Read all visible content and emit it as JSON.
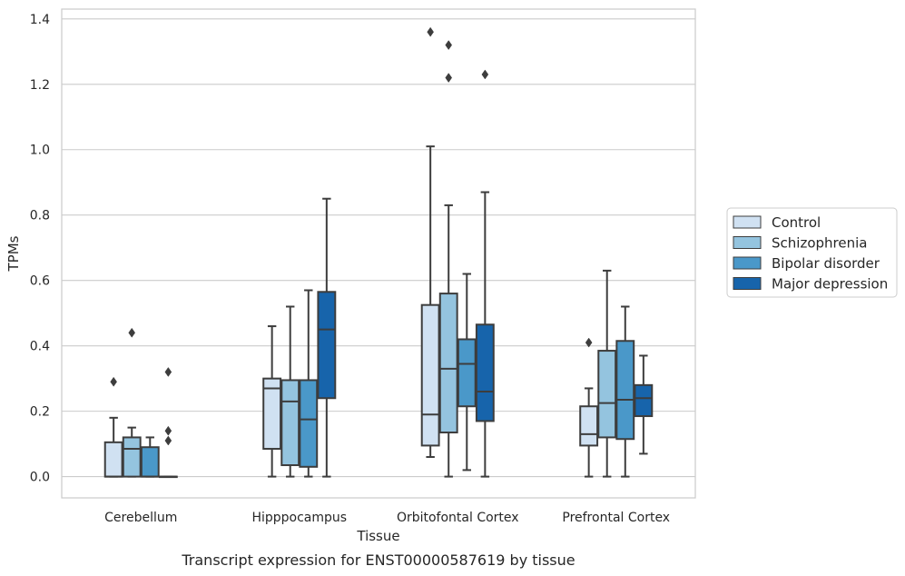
{
  "caption": "Transcript expression for ENST00000587619 by tissue",
  "chart_data": {
    "type": "box",
    "xlabel": "Tissue",
    "ylabel": "TPMs",
    "ylim": [
      -0.065,
      1.43
    ],
    "yticks": [
      0.0,
      0.2,
      0.4,
      0.6,
      0.8,
      1.0,
      1.2,
      1.4
    ],
    "ytick_labels": [
      "0.0",
      "0.2",
      "0.4",
      "0.6",
      "0.8",
      "1.0",
      "1.2",
      "1.4"
    ],
    "grid": true,
    "legend_position": "right-outside",
    "categories": [
      "Cerebellum",
      "Hipppocampus",
      "Orbitofontal Cortex",
      "Prefrontal Cortex"
    ],
    "series": [
      {
        "name": "Control",
        "color": "#d0e1f2",
        "boxes": [
          {
            "whislo": 0.0,
            "q1": 0.0,
            "med": 0.0,
            "q3": 0.105,
            "whishi": 0.18,
            "fliers": [
              0.29
            ]
          },
          {
            "whislo": 0.0,
            "q1": 0.085,
            "med": 0.27,
            "q3": 0.3,
            "whishi": 0.46,
            "fliers": []
          },
          {
            "whislo": 0.06,
            "q1": 0.095,
            "med": 0.19,
            "q3": 0.525,
            "whishi": 1.01,
            "fliers": [
              1.36
            ]
          },
          {
            "whislo": 0.0,
            "q1": 0.095,
            "med": 0.13,
            "q3": 0.215,
            "whishi": 0.27,
            "fliers": [
              0.41
            ]
          }
        ]
      },
      {
        "name": "Schizophrenia",
        "color": "#94c4df",
        "boxes": [
          {
            "whislo": 0.0,
            "q1": 0.0,
            "med": 0.085,
            "q3": 0.12,
            "whishi": 0.15,
            "fliers": [
              0.44
            ]
          },
          {
            "whislo": 0.0,
            "q1": 0.035,
            "med": 0.23,
            "q3": 0.295,
            "whishi": 0.52,
            "fliers": []
          },
          {
            "whislo": 0.0,
            "q1": 0.135,
            "med": 0.33,
            "q3": 0.56,
            "whishi": 0.83,
            "fliers": [
              1.32,
              1.22
            ]
          },
          {
            "whislo": 0.0,
            "q1": 0.12,
            "med": 0.225,
            "q3": 0.385,
            "whishi": 0.63,
            "fliers": []
          }
        ]
      },
      {
        "name": "Bipolar disorder",
        "color": "#4a98c9",
        "boxes": [
          {
            "whislo": 0.0,
            "q1": 0.0,
            "med": 0.0,
            "q3": 0.09,
            "whishi": 0.12,
            "fliers": []
          },
          {
            "whislo": 0.0,
            "q1": 0.03,
            "med": 0.175,
            "q3": 0.295,
            "whishi": 0.57,
            "fliers": []
          },
          {
            "whislo": 0.02,
            "q1": 0.215,
            "med": 0.345,
            "q3": 0.42,
            "whishi": 0.62,
            "fliers": []
          },
          {
            "whislo": 0.0,
            "q1": 0.115,
            "med": 0.235,
            "q3": 0.415,
            "whishi": 0.52,
            "fliers": []
          }
        ]
      },
      {
        "name": "Major depression",
        "color": "#1764ab",
        "boxes": [
          {
            "whislo": 0.0,
            "q1": 0.0,
            "med": 0.0,
            "q3": 0.0,
            "whishi": 0.0,
            "fliers": [
              0.32,
              0.14,
              0.11
            ]
          },
          {
            "whislo": 0.0,
            "q1": 0.24,
            "med": 0.45,
            "q3": 0.565,
            "whishi": 0.85,
            "fliers": []
          },
          {
            "whislo": 0.0,
            "q1": 0.17,
            "med": 0.26,
            "q3": 0.465,
            "whishi": 0.87,
            "fliers": [
              1.23
            ]
          },
          {
            "whislo": 0.07,
            "q1": 0.185,
            "med": 0.24,
            "q3": 0.28,
            "whishi": 0.37,
            "fliers": []
          }
        ]
      }
    ]
  }
}
